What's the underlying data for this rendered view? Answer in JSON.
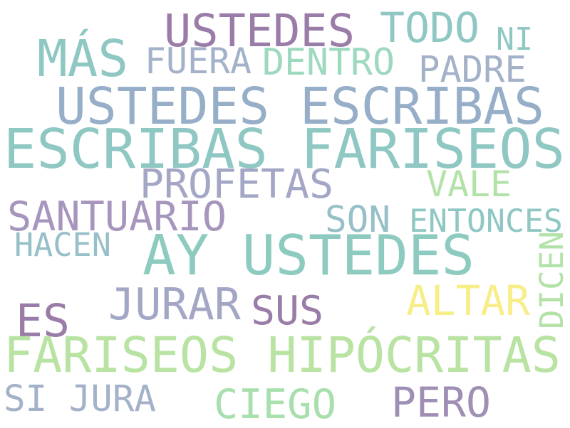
{
  "words": [
    {
      "text": "USTEDES",
      "color": "#9a7ca8"
    },
    {
      "text": "TODO",
      "color": "#8fc7c3"
    },
    {
      "text": "NI",
      "color": "#8fc7c3"
    },
    {
      "text": "MÁS",
      "color": "#8fc7c3"
    },
    {
      "text": "FUERA",
      "color": "#a3b1c9"
    },
    {
      "text": "DENTRO",
      "color": "#9ed9bf"
    },
    {
      "text": "PADRE",
      "color": "#a3b1c9"
    },
    {
      "text": "USTEDES ESCRIBAS",
      "color": "#97aec8"
    },
    {
      "text": "ESCRIBAS FARISEOS",
      "color": "#8fc7c3"
    },
    {
      "text": "PROFETAS",
      "color": "#a3a7c5"
    },
    {
      "text": "VALE",
      "color": "#b3e2a9"
    },
    {
      "text": "SANTUARIO",
      "color": "#a696bd"
    },
    {
      "text": "SON",
      "color": "#97bfc8"
    },
    {
      "text": "ENTONCES",
      "color": "#8fc7c3"
    },
    {
      "text": "HACEN",
      "color": "#97bfc8"
    },
    {
      "text": "AY USTEDES",
      "color": "#8dcbc0"
    },
    {
      "text": "DICEN",
      "color": "#b3e2a9"
    },
    {
      "text": "JURAR",
      "color": "#a3a7c5"
    },
    {
      "text": "SUS",
      "color": "#9a7ca8"
    },
    {
      "text": "ALTAR",
      "color": "#f7ee8a"
    },
    {
      "text": "ES",
      "color": "#9a7ca8"
    },
    {
      "text": "FARISEOS HIPÓCRITAS",
      "color": "#b9e3a2"
    },
    {
      "text": "SI JURA",
      "color": "#a3b1c9"
    },
    {
      "text": "CIEGO",
      "color": "#a7dfad"
    },
    {
      "text": "PERO",
      "color": "#9f8fb5"
    }
  ]
}
